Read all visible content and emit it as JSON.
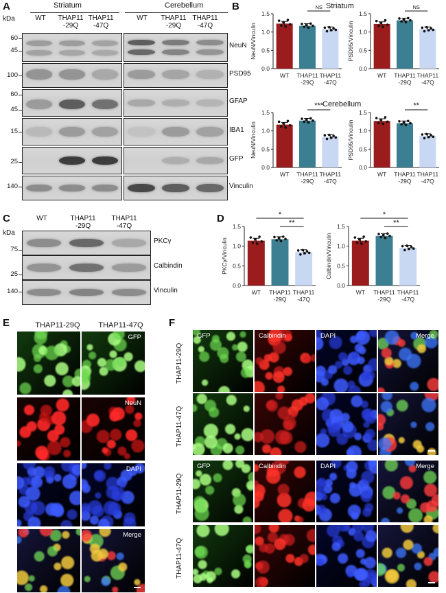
{
  "panels": {
    "A": "A",
    "B": "B",
    "C": "C",
    "D": "D",
    "E": "E",
    "F": "F"
  },
  "colors": {
    "wt": "#9b1c1c",
    "q29": "#3d7f92",
    "q47": "#c9d8f2"
  },
  "panelA": {
    "kda": "kDa",
    "striatum": "Striatum",
    "cerebellum": "Cerebellum",
    "lanes": [
      "WT",
      "THAP11\n-29Q",
      "THAP11\n-47Q"
    ],
    "rows": [
      {
        "name": "NeuN",
        "mw": [
          "60",
          "45"
        ]
      },
      {
        "name": "PSD95",
        "mw": [
          "100"
        ]
      },
      {
        "name": "GFAP",
        "mw": [
          "60",
          "45"
        ]
      },
      {
        "name": "IBA1",
        "mw": [
          "15"
        ]
      },
      {
        "name": "GFP",
        "mw": [
          "25"
        ]
      },
      {
        "name": "Vinculin",
        "mw": [
          "140"
        ]
      }
    ]
  },
  "panelC": {
    "kda": "kDa",
    "lanes": [
      "WT",
      "THAP11\n-29Q",
      "THAP11\n-47Q"
    ],
    "rows": [
      {
        "name": "PKCγ",
        "mw": [
          "75"
        ]
      },
      {
        "name": "Calbindin",
        "mw": [
          "25"
        ]
      },
      {
        "name": "Vinculin",
        "mw": [
          "140"
        ]
      }
    ]
  },
  "chart_data": [
    {
      "type": "bar",
      "title": "Striatum",
      "ylabel": "NeuN/Vinculin",
      "categories": [
        "WT",
        "THAP11-29Q",
        "THAP11-47Q"
      ],
      "values": [
        1.23,
        1.17,
        1.08
      ],
      "ylim": [
        0,
        1.5
      ],
      "significance": "NS"
    },
    {
      "type": "bar",
      "title": "",
      "ylabel": "PSD95/Vinculin",
      "categories": [
        "WT",
        "THAP11-29Q",
        "THAP11-47Q"
      ],
      "values": [
        1.22,
        1.32,
        1.08
      ],
      "ylim": [
        0,
        1.5
      ],
      "significance": "NS"
    },
    {
      "type": "bar",
      "title": "Cerebellum",
      "ylabel": "NeuN/Vinculin",
      "categories": [
        "WT",
        "THAP11-29Q",
        "THAP11-47Q"
      ],
      "values": [
        1.17,
        1.28,
        0.84
      ],
      "ylim": [
        0,
        1.5
      ],
      "significance": "***"
    },
    {
      "type": "bar",
      "title": "",
      "ylabel": "PSD95/Vinculin",
      "categories": [
        "WT",
        "THAP11-29Q",
        "THAP11-47Q"
      ],
      "values": [
        1.27,
        1.21,
        0.86
      ],
      "ylim": [
        0,
        1.5
      ],
      "significance": "**"
    },
    {
      "type": "bar",
      "title": "",
      "ylabel": "PKCγ/Vinculin",
      "categories": [
        "WT",
        "THAP11-29Q",
        "THAP11-47Q"
      ],
      "values": [
        1.14,
        1.18,
        0.85
      ],
      "ylim": [
        0,
        1.5
      ],
      "significance": [
        "*",
        "**"
      ]
    },
    {
      "type": "bar",
      "title": "",
      "ylabel": "Calbindin/Vinculin",
      "categories": [
        "WT",
        "THAP11-29Q",
        "THAP11-47Q"
      ],
      "values": [
        1.14,
        1.26,
        0.96
      ],
      "ylim": [
        0,
        1.5
      ],
      "significance": [
        "*",
        "**"
      ]
    }
  ],
  "panelE": {
    "cols": [
      "THAP11-29Q",
      "THAP11-47Q"
    ],
    "channels": [
      "GFP",
      "NeuN",
      "DAPI",
      "Merge"
    ]
  },
  "panelF": {
    "cols": [
      "GFP",
      "Calbindin",
      "DAPI",
      "Merge"
    ],
    "rows": [
      "THAP11-29Q",
      "THAP11-47Q",
      "THAP11-29Q",
      "THAP11-47Q"
    ]
  }
}
